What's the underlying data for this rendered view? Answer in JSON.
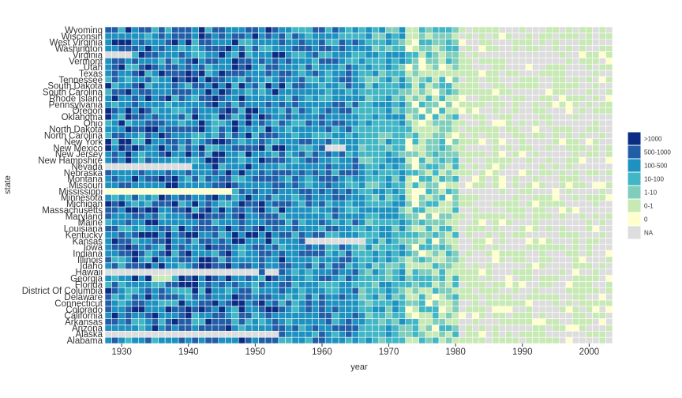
{
  "chart_data": {
    "type": "heatmap",
    "title": "",
    "xlabel": "year",
    "ylabel": "state",
    "x_tick_labels": [
      "1930",
      "1940",
      "1950",
      "1960",
      "1970",
      "1980",
      "1990",
      "2000"
    ],
    "x_tick_values": [
      1930,
      1940,
      1950,
      1960,
      1970,
      1980,
      1990,
      2000
    ],
    "xlim": [
      1928,
      2003
    ],
    "states": [
      "Alabama",
      "Alaska",
      "Arizona",
      "Arkansas",
      "California",
      "Colorado",
      "Connecticut",
      "Delaware",
      "District Of Columbia",
      "Florida",
      "Georgia",
      "Hawaii",
      "Idaho",
      "Illinois",
      "Indiana",
      "Iowa",
      "Kansas",
      "Kentucky",
      "Louisiana",
      "Maine",
      "Maryland",
      "Massachusetts",
      "Michigan",
      "Minnesota",
      "Mississippi",
      "Missouri",
      "Montana",
      "Nebraska",
      "Nevada",
      "New Hampshire",
      "New Jersey",
      "New Mexico",
      "New York",
      "North Carolina",
      "North Dakota",
      "Ohio",
      "Oklahoma",
      "Oregon",
      "Pennsylvania",
      "Rhode Island",
      "South Carolina",
      "South Dakota",
      "Tennessee",
      "Texas",
      "Utah",
      "Vermont",
      "Virginia",
      "Washington",
      "West Virginia",
      "Wisconsin",
      "Wyoming"
    ],
    "legend": {
      "position": "right",
      "labels": [
        ">1000",
        "500-1000",
        "100-500",
        "10-100",
        "1-10",
        "0-1",
        "0",
        "NA"
      ],
      "colors": [
        "#0c2c84",
        "#225ea8",
        "#1d91c0",
        "#41b6c4",
        "#7fcdbb",
        "#c7e9b4",
        "#ffffcc",
        "#dddddd"
      ]
    },
    "na_color": "#dddddd",
    "panel_background": "#ffffff",
    "cell_border_color": "#ffffff",
    "grid": false,
    "levels_by_era": [
      {
        "from": 1928,
        "to": 1955,
        "typical_levels": [
          ">1000",
          "500-1000",
          "100-500",
          "10-100"
        ]
      },
      {
        "from": 1955,
        "to": 1966,
        "typical_levels": [
          "500-1000",
          "100-500",
          "10-100"
        ]
      },
      {
        "from": 1966,
        "to": 1973,
        "typical_levels": [
          "100-500",
          "10-100",
          "1-10"
        ]
      },
      {
        "from": 1973,
        "to": 1981,
        "typical_levels": [
          "10-100",
          "1-10",
          "0-1",
          "0"
        ]
      },
      {
        "from": 1981,
        "to": 2003,
        "typical_levels": [
          "0-1",
          "0",
          "NA"
        ]
      }
    ],
    "missing_runs": [
      {
        "state": "Alaska",
        "from": 1928,
        "to": 1953,
        "value": "NA"
      },
      {
        "state": "Hawaii",
        "from": 1928,
        "to": 1950,
        "value": "NA"
      },
      {
        "state": "Hawaii",
        "from": 1952,
        "to": 1953,
        "value": "NA"
      },
      {
        "state": "Nevada",
        "from": 1928,
        "to": 1940,
        "value": "NA"
      },
      {
        "state": "Mississippi",
        "from": 1928,
        "to": 1946,
        "value": "0"
      },
      {
        "state": "Kansas",
        "from": 1958,
        "to": 1966,
        "value": "NA"
      },
      {
        "state": "Virginia",
        "from": 1928,
        "to": 1931,
        "value": "NA"
      },
      {
        "state": "New Mexico",
        "from": 1961,
        "to": 1963,
        "value": "NA"
      },
      {
        "state": "Georgia",
        "from": 1935,
        "to": 1937,
        "value": "0-1"
      }
    ]
  }
}
